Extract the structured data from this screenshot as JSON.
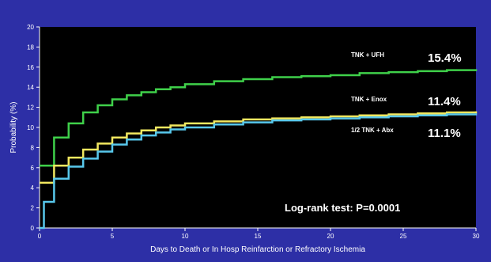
{
  "chart_data": {
    "type": "line",
    "xlabel": "Days to Death or  In Hosp Reinfarction or Refractory Ischemia",
    "ylabel": "Probability (%)",
    "xlim": [
      0,
      30
    ],
    "ylim": [
      0,
      20
    ],
    "x_ticks": [
      "0",
      "5",
      "10",
      "15",
      "20",
      "25",
      "30"
    ],
    "y_ticks": [
      "0",
      "2",
      "4",
      "6",
      "8",
      "10",
      "12",
      "14",
      "16",
      "18",
      "20"
    ],
    "grid": false,
    "step": true,
    "series": [
      {
        "name": "TNK + UFH",
        "value_label": "15.4%",
        "color": "#3fd04a",
        "x": [
          0,
          1,
          2,
          3,
          4,
          5,
          6,
          7,
          8,
          9,
          10,
          12,
          14,
          16,
          18,
          20,
          22,
          24,
          26,
          28,
          30
        ],
        "y": [
          6.2,
          9.0,
          10.4,
          11.5,
          12.2,
          12.8,
          13.2,
          13.5,
          13.8,
          14.0,
          14.3,
          14.6,
          14.8,
          15.0,
          15.1,
          15.2,
          15.4,
          15.5,
          15.6,
          15.7,
          15.8
        ]
      },
      {
        "name": "TNK + Enox",
        "value_label": "11.4%",
        "color": "#f2e860",
        "x": [
          0,
          1,
          2,
          3,
          4,
          5,
          6,
          7,
          8,
          9,
          10,
          12,
          14,
          16,
          18,
          20,
          22,
          24,
          26,
          28,
          30
        ],
        "y": [
          4.5,
          6.2,
          7.0,
          7.8,
          8.4,
          9.0,
          9.4,
          9.7,
          10.0,
          10.2,
          10.4,
          10.6,
          10.8,
          10.9,
          11.0,
          11.1,
          11.2,
          11.3,
          11.4,
          11.5,
          11.6
        ]
      },
      {
        "name": "1/2 TNK + Abx",
        "value_label": "11.1%",
        "color": "#58c8ec",
        "x": [
          0,
          0.3,
          1,
          2,
          3,
          4,
          5,
          6,
          7,
          8,
          9,
          10,
          12,
          14,
          16,
          18,
          20,
          22,
          24,
          26,
          28,
          30
        ],
        "y": [
          0,
          2.6,
          4.9,
          6.1,
          6.9,
          7.6,
          8.3,
          8.8,
          9.2,
          9.5,
          9.8,
          10.0,
          10.3,
          10.5,
          10.7,
          10.8,
          10.9,
          11.0,
          11.1,
          11.2,
          11.3,
          11.4
        ]
      }
    ],
    "annotation": "Log-rank test: P=0.0001"
  }
}
